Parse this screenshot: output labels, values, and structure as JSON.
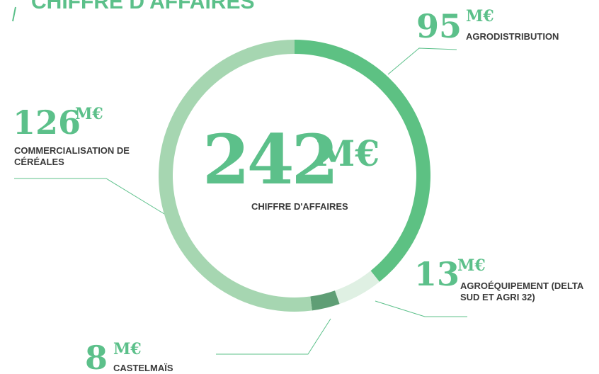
{
  "chart_data": {
    "type": "donut",
    "title": "CHIFFRE D'AFFAIRES",
    "unit": "M€",
    "total": 242,
    "total_label": "CHIFFRE D'AFFAIRES",
    "categories": [
      "AGRODISTRIBUTION",
      "AGROÉQUIPEMENT (DELTA SUD ET AGRI 32)",
      "CASTELMAÏS",
      "COMMERCIALISATION DE CÉRÉALES"
    ],
    "values": [
      95,
      13,
      8,
      126
    ],
    "colors": [
      "#5dc183",
      "#dff0e3",
      "#5f9e75",
      "#a6d6b1"
    ]
  }
}
